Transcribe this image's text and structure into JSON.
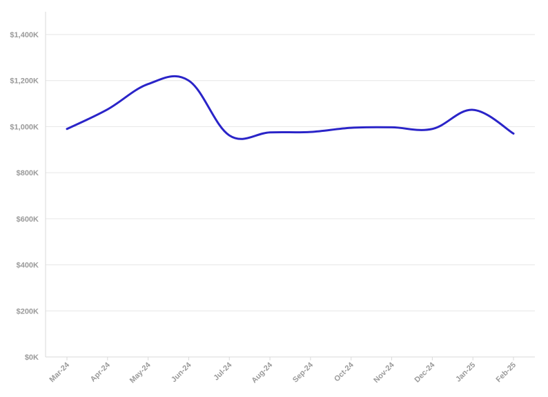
{
  "chart_data": {
    "type": "line",
    "title": "",
    "xlabel": "",
    "ylabel": "",
    "categories": [
      "Mar-24",
      "Apr-24",
      "May-24",
      "Jun-24",
      "Jul-24",
      "Aug-24",
      "Sep-24",
      "Oct-24",
      "Nov-24",
      "Dec-24",
      "Jan-25",
      "Feb-25"
    ],
    "series": [
      {
        "values": [
          990000,
          1075000,
          1185000,
          1200000,
          962000,
          975000,
          977000,
          995000,
          997000,
          990000,
          1073000,
          970000
        ]
      }
    ],
    "ylim": [
      0,
      1400000
    ],
    "y_ticks": [
      0,
      200000,
      400000,
      600000,
      800000,
      1000000,
      1200000,
      1400000
    ],
    "y_tick_labels": [
      "$0K",
      "$200K",
      "$400K",
      "$600K",
      "$800K",
      "$1,000K",
      "$1,200K",
      "$1,400K"
    ],
    "grid": true,
    "legend": "none",
    "line_color": "#2a24c8"
  }
}
